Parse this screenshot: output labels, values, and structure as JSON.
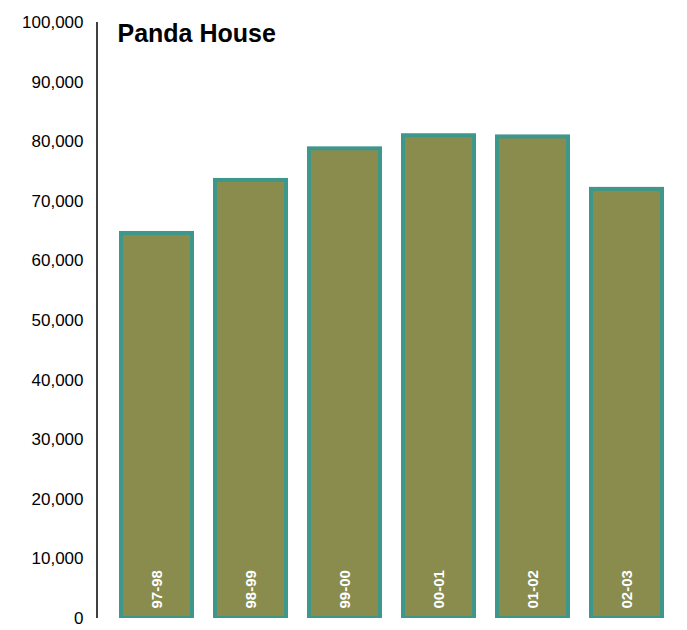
{
  "chart_data": {
    "type": "bar",
    "title": "Panda House",
    "categories": [
      "97-98",
      "98-99",
      "99-00",
      "00-01",
      "01-02",
      "02-03"
    ],
    "values": [
      64600,
      73500,
      78800,
      81000,
      80800,
      72000
    ],
    "color": "#8a8c4e",
    "ylim": [
      0,
      100000
    ],
    "yticks": [
      0,
      {
        "value": 10000,
        "label": "10,000"
      },
      {
        "value": 20000,
        "label": "20,000"
      },
      {
        "value": 30000,
        "label": "30,000"
      },
      {
        "value": 40000,
        "label": "40,000"
      },
      {
        "value": 50000,
        "label": "50,000"
      },
      {
        "value": 60000,
        "label": "60,000"
      },
      {
        "value": 70000,
        "label": "70,000"
      },
      {
        "value": 80000,
        "label": "80,000"
      },
      {
        "value": 90000,
        "label": "90,000"
      },
      {
        "value": 100000,
        "label": "100,000"
      }
    ],
    "grid": false
  }
}
